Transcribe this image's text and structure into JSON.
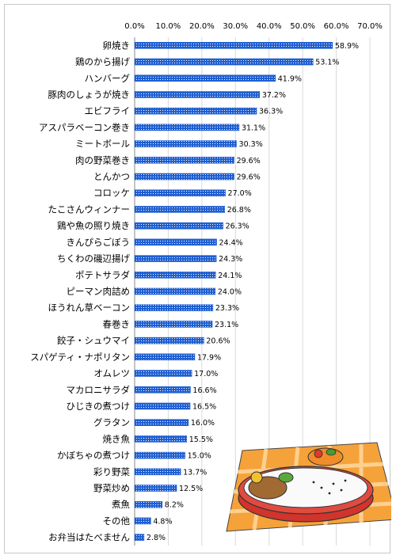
{
  "chart_data": {
    "type": "bar",
    "orientation": "horizontal",
    "title": "",
    "xlabel": "",
    "ylabel": "",
    "xlim": [
      0,
      70
    ],
    "ticks": [
      "0.0%",
      "10.0%",
      "20.0%",
      "30.0%",
      "40.0%",
      "50.0%",
      "60.0%",
      "70.0%"
    ],
    "value_suffix": "%",
    "grid": true,
    "bar_color": "#1f5fd1",
    "categories": [
      "卵焼き",
      "鶏のから揚げ",
      "ハンバーグ",
      "豚肉のしょうが焼き",
      "エビフライ",
      "アスパラベーコン巻き",
      "ミートボール",
      "肉の野菜巻き",
      "とんかつ",
      "コロッケ",
      "たこさんウィンナー",
      "鶏や魚の照り焼き",
      "きんぴらごぼう",
      "ちくわの磯辺揚げ",
      "ポテトサラダ",
      "ピーマン肉詰め",
      "ほうれん草ベーコン",
      "春巻き",
      "餃子・シュウマイ",
      "スパゲティ・ナポリタン",
      "オムレツ",
      "マカロニサラダ",
      "ひじきの煮つけ",
      "グラタン",
      "焼き魚",
      "かぼちゃの煮つけ",
      "彩り野菜",
      "野菜炒め",
      "煮魚",
      "その他",
      "お弁当はたべません"
    ],
    "values": [
      58.9,
      53.1,
      41.9,
      37.2,
      36.3,
      31.1,
      30.3,
      29.6,
      29.6,
      27.0,
      26.8,
      26.3,
      24.4,
      24.3,
      24.1,
      24.0,
      23.3,
      23.1,
      20.6,
      17.9,
      17.0,
      16.6,
      16.5,
      16.0,
      15.5,
      15.0,
      13.7,
      12.5,
      8.2,
      4.8,
      2.8
    ],
    "value_labels": [
      "58.9%",
      "53.1%",
      "41.9%",
      "37.2%",
      "36.3%",
      "31.1%",
      "30.3%",
      "29.6%",
      "29.6%",
      "27.0%",
      "26.8%",
      "26.3%",
      "24.4%",
      "24.3%",
      "24.1%",
      "24.0%",
      "23.3%",
      "23.1%",
      "20.6%",
      "17.9%",
      "17.0%",
      "16.6%",
      "16.5%",
      "16.0%",
      "15.5%",
      "15.0%",
      "13.7%",
      "12.5%",
      "8.2%",
      "4.8%",
      "2.8%"
    ]
  },
  "illustration": {
    "icon": "bento-box-icon"
  }
}
